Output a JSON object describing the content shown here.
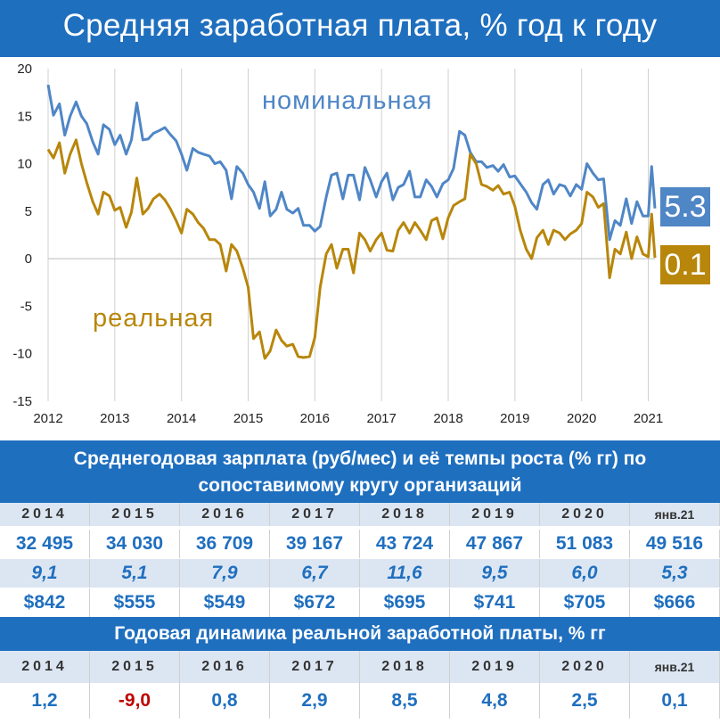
{
  "title": "Средняя заработная плата, % год к году",
  "chart_data": {
    "type": "line",
    "xlim": [
      2012,
      2021.1
    ],
    "ylim": [
      -15,
      20
    ],
    "x_ticks": [
      "2012",
      "2013",
      "2014",
      "2015",
      "2016",
      "2017",
      "2018",
      "2019",
      "2020",
      "2021"
    ],
    "y_ticks": [
      "20",
      "15",
      "10",
      "5",
      "0",
      "-5",
      "-10",
      "-15"
    ],
    "grid": "vertical",
    "series": [
      {
        "name": "номинальная",
        "color": "#4f86c6",
        "last_value": "5.3",
        "points": [
          [
            2012.0,
            18.3
          ],
          [
            2012.08,
            15.1
          ],
          [
            2012.17,
            16.3
          ],
          [
            2012.25,
            13.0
          ],
          [
            2012.33,
            15.0
          ],
          [
            2012.42,
            16.5
          ],
          [
            2012.5,
            15.0
          ],
          [
            2012.58,
            14.2
          ],
          [
            2012.67,
            12.3
          ],
          [
            2012.75,
            11.0
          ],
          [
            2012.83,
            14.1
          ],
          [
            2012.92,
            13.6
          ],
          [
            2013.0,
            12.0
          ],
          [
            2013.08,
            13.0
          ],
          [
            2013.17,
            11.0
          ],
          [
            2013.25,
            12.5
          ],
          [
            2013.33,
            16.4
          ],
          [
            2013.42,
            12.5
          ],
          [
            2013.5,
            12.6
          ],
          [
            2013.58,
            13.2
          ],
          [
            2013.67,
            13.5
          ],
          [
            2013.75,
            13.8
          ],
          [
            2013.83,
            13.1
          ],
          [
            2013.92,
            12.4
          ],
          [
            2014.0,
            11.0
          ],
          [
            2014.08,
            9.3
          ],
          [
            2014.17,
            11.6
          ],
          [
            2014.25,
            11.2
          ],
          [
            2014.33,
            11.0
          ],
          [
            2014.42,
            10.8
          ],
          [
            2014.5,
            10.0
          ],
          [
            2014.58,
            10.2
          ],
          [
            2014.67,
            9.3
          ],
          [
            2014.75,
            6.3
          ],
          [
            2014.83,
            9.7
          ],
          [
            2014.92,
            9.0
          ],
          [
            2015.0,
            7.8
          ],
          [
            2015.08,
            7.0
          ],
          [
            2015.17,
            5.3
          ],
          [
            2015.25,
            8.1
          ],
          [
            2015.33,
            4.5
          ],
          [
            2015.42,
            5.2
          ],
          [
            2015.5,
            7.0
          ],
          [
            2015.58,
            5.2
          ],
          [
            2015.67,
            4.8
          ],
          [
            2015.75,
            5.3
          ],
          [
            2015.83,
            3.5
          ],
          [
            2015.92,
            3.5
          ],
          [
            2016.0,
            2.9
          ],
          [
            2016.08,
            3.4
          ],
          [
            2016.17,
            6.5
          ],
          [
            2016.25,
            8.8
          ],
          [
            2016.33,
            9.0
          ],
          [
            2016.42,
            6.3
          ],
          [
            2016.5,
            8.8
          ],
          [
            2016.58,
            8.8
          ],
          [
            2016.67,
            6.2
          ],
          [
            2016.75,
            9.6
          ],
          [
            2016.83,
            8.3
          ],
          [
            2016.92,
            6.5
          ],
          [
            2017.0,
            8.1
          ],
          [
            2017.08,
            9.0
          ],
          [
            2017.17,
            6.2
          ],
          [
            2017.25,
            7.5
          ],
          [
            2017.33,
            7.8
          ],
          [
            2017.42,
            9.2
          ],
          [
            2017.5,
            6.5
          ],
          [
            2017.58,
            6.5
          ],
          [
            2017.67,
            8.3
          ],
          [
            2017.75,
            7.6
          ],
          [
            2017.83,
            6.5
          ],
          [
            2017.92,
            7.9
          ],
          [
            2018.0,
            8.3
          ],
          [
            2018.08,
            9.5
          ],
          [
            2018.17,
            13.4
          ],
          [
            2018.25,
            13.0
          ],
          [
            2018.33,
            11.2
          ],
          [
            2018.42,
            10.2
          ],
          [
            2018.5,
            10.2
          ],
          [
            2018.58,
            9.6
          ],
          [
            2018.67,
            9.8
          ],
          [
            2018.75,
            9.2
          ],
          [
            2018.83,
            9.9
          ],
          [
            2018.92,
            8.6
          ],
          [
            2019.0,
            8.7
          ],
          [
            2019.08,
            7.9
          ],
          [
            2019.17,
            7.0
          ],
          [
            2019.25,
            5.9
          ],
          [
            2019.33,
            5.2
          ],
          [
            2019.42,
            7.8
          ],
          [
            2019.5,
            8.3
          ],
          [
            2019.58,
            6.8
          ],
          [
            2019.67,
            7.8
          ],
          [
            2019.75,
            7.6
          ],
          [
            2019.83,
            6.6
          ],
          [
            2019.92,
            7.8
          ],
          [
            2020.0,
            7.3
          ],
          [
            2020.08,
            10.0
          ],
          [
            2020.17,
            9.0
          ],
          [
            2020.25,
            8.3
          ],
          [
            2020.33,
            8.4
          ],
          [
            2020.42,
            2.0
          ],
          [
            2020.5,
            4.0
          ],
          [
            2020.58,
            3.5
          ],
          [
            2020.67,
            6.3
          ],
          [
            2020.75,
            3.7
          ],
          [
            2020.83,
            6.0
          ],
          [
            2020.92,
            4.5
          ],
          [
            2021.0,
            4.5
          ],
          [
            2021.05,
            9.7
          ],
          [
            2021.1,
            5.3
          ]
        ]
      },
      {
        "name": "реальная",
        "color": "#b8860b",
        "last_value": "0.1",
        "points": [
          [
            2012.0,
            11.5
          ],
          [
            2012.08,
            10.6
          ],
          [
            2012.17,
            12.2
          ],
          [
            2012.25,
            9.0
          ],
          [
            2012.33,
            11.0
          ],
          [
            2012.42,
            12.5
          ],
          [
            2012.5,
            10.0
          ],
          [
            2012.58,
            8.0
          ],
          [
            2012.67,
            6.0
          ],
          [
            2012.75,
            4.7
          ],
          [
            2012.83,
            7.0
          ],
          [
            2012.92,
            6.6
          ],
          [
            2013.0,
            5.1
          ],
          [
            2013.08,
            5.4
          ],
          [
            2013.17,
            3.3
          ],
          [
            2013.25,
            4.9
          ],
          [
            2013.33,
            8.5
          ],
          [
            2013.42,
            4.7
          ],
          [
            2013.5,
            5.3
          ],
          [
            2013.58,
            6.3
          ],
          [
            2013.67,
            6.8
          ],
          [
            2013.75,
            6.2
          ],
          [
            2013.83,
            5.3
          ],
          [
            2013.92,
            4.0
          ],
          [
            2014.0,
            2.7
          ],
          [
            2014.08,
            5.2
          ],
          [
            2014.17,
            4.7
          ],
          [
            2014.25,
            3.8
          ],
          [
            2014.33,
            3.2
          ],
          [
            2014.42,
            2.0
          ],
          [
            2014.5,
            2.0
          ],
          [
            2014.58,
            1.5
          ],
          [
            2014.67,
            -1.3
          ],
          [
            2014.75,
            1.5
          ],
          [
            2014.83,
            0.8
          ],
          [
            2014.92,
            -1.0
          ],
          [
            2015.0,
            -3.0
          ],
          [
            2015.08,
            -8.4
          ],
          [
            2015.17,
            -7.7
          ],
          [
            2015.25,
            -10.5
          ],
          [
            2015.33,
            -9.7
          ],
          [
            2015.42,
            -7.5
          ],
          [
            2015.5,
            -8.6
          ],
          [
            2015.58,
            -9.2
          ],
          [
            2015.67,
            -9.0
          ],
          [
            2015.75,
            -10.3
          ],
          [
            2015.83,
            -10.4
          ],
          [
            2015.92,
            -10.3
          ],
          [
            2016.0,
            -8.3
          ],
          [
            2016.08,
            -3.0
          ],
          [
            2016.17,
            0.5
          ],
          [
            2016.25,
            1.5
          ],
          [
            2016.33,
            -1.0
          ],
          [
            2016.42,
            1.0
          ],
          [
            2016.5,
            1.0
          ],
          [
            2016.58,
            -1.5
          ],
          [
            2016.67,
            2.7
          ],
          [
            2016.75,
            2.0
          ],
          [
            2016.83,
            0.8
          ],
          [
            2016.92,
            2.0
          ],
          [
            2017.0,
            2.7
          ],
          [
            2017.08,
            0.9
          ],
          [
            2017.17,
            0.8
          ],
          [
            2017.25,
            3.0
          ],
          [
            2017.33,
            3.8
          ],
          [
            2017.42,
            2.7
          ],
          [
            2017.5,
            3.8
          ],
          [
            2017.58,
            3.0
          ],
          [
            2017.67,
            2.0
          ],
          [
            2017.75,
            4.0
          ],
          [
            2017.83,
            4.3
          ],
          [
            2017.92,
            2.1
          ],
          [
            2018.0,
            4.3
          ],
          [
            2018.08,
            5.6
          ],
          [
            2018.17,
            6.0
          ],
          [
            2018.25,
            6.3
          ],
          [
            2018.33,
            11.0
          ],
          [
            2018.42,
            10.0
          ],
          [
            2018.5,
            7.8
          ],
          [
            2018.58,
            7.6
          ],
          [
            2018.67,
            7.2
          ],
          [
            2018.75,
            7.7
          ],
          [
            2018.83,
            6.8
          ],
          [
            2018.92,
            7.0
          ],
          [
            2019.0,
            5.5
          ],
          [
            2019.08,
            3.0
          ],
          [
            2019.17,
            1.0
          ],
          [
            2019.25,
            0.0
          ],
          [
            2019.33,
            2.2
          ],
          [
            2019.42,
            3.0
          ],
          [
            2019.5,
            1.5
          ],
          [
            2019.58,
            3.0
          ],
          [
            2019.67,
            2.7
          ],
          [
            2019.75,
            2.0
          ],
          [
            2019.83,
            2.6
          ],
          [
            2019.92,
            3.0
          ],
          [
            2020.0,
            3.7
          ],
          [
            2020.08,
            7.0
          ],
          [
            2020.17,
            6.5
          ],
          [
            2020.25,
            5.4
          ],
          [
            2020.33,
            5.8
          ],
          [
            2020.42,
            -2.0
          ],
          [
            2020.5,
            1.0
          ],
          [
            2020.58,
            0.5
          ],
          [
            2020.67,
            2.8
          ],
          [
            2020.75,
            0.0
          ],
          [
            2020.83,
            2.3
          ],
          [
            2020.92,
            0.5
          ],
          [
            2021.0,
            0.2
          ],
          [
            2021.05,
            4.7
          ],
          [
            2021.1,
            0.1
          ]
        ]
      }
    ]
  },
  "table1": {
    "title": "Среднегодовая зарплата (руб/мес) и её темпы роста (% гг)  по сопоставимому кругу организаций",
    "years": [
      "2014",
      "2015",
      "2016",
      "2017",
      "2018",
      "2019",
      "2020",
      "янв.21"
    ],
    "wage": [
      "32 495",
      "34 030",
      "36 709",
      "39 167",
      "43 724",
      "47 867",
      "51 083",
      "49 516"
    ],
    "growth": [
      "9,1",
      "5,1",
      "7,9",
      "6,7",
      "11,6",
      "9,5",
      "6,0",
      "5,3"
    ],
    "usd": [
      "$842",
      "$555",
      "$549",
      "$672",
      "$695",
      "$741",
      "$705",
      "$666"
    ]
  },
  "table2": {
    "title": "Годовая динамика реальной заработной платы, % гг",
    "years": [
      "2014",
      "2015",
      "2016",
      "2017",
      "2018",
      "2019",
      "2020",
      "янв.21"
    ],
    "values": [
      "1,2",
      "-9,0",
      "0,8",
      "2,9",
      "8,5",
      "4,8",
      "2,5",
      "0,1"
    ],
    "negative_color": "#c00000"
  },
  "colors": {
    "brand_blue": "#1f6fbf",
    "nominal": "#4f86c6",
    "real": "#b8860b",
    "nominal_badge": "#4f86c6",
    "real_badge": "#b8860b"
  }
}
